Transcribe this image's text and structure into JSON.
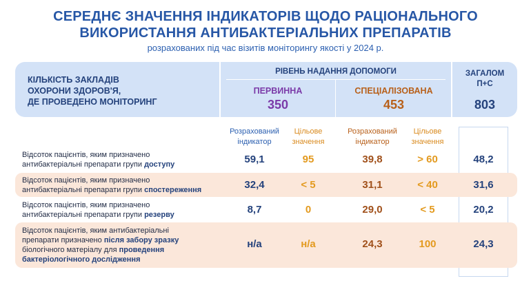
{
  "title_line1": "СЕРЕДНЄ ЗНАЧЕННЯ ІНДИКАТОРІВ ЩОДО РАЦІОНАЛЬНОГО",
  "title_line2": "ВИКОРИСТАННЯ АНТИБАКТЕРІАЛЬНИХ ПРЕПАРАТІВ",
  "subtitle": "розрахованих під час візитів моніторингу якості у 2024 р.",
  "header": {
    "left_line1": "КІЛЬКІСТЬ ЗАКЛАДІВ",
    "left_line2": "ОХОРОНИ ЗДОРОВ'Я,",
    "left_line3": "ДЕ ПРОВЕДЕНО МОНІТОРИНГ",
    "level": "РІВЕНЬ НАДАННЯ ДОПОМОГИ",
    "primary_label": "ПЕРВИННА",
    "primary_count": "350",
    "special_label": "СПЕЦІАЛІЗОВАНА",
    "special_count": "453",
    "total_line1": "ЗАГАЛОМ",
    "total_line2": "П+С",
    "total_count": "803"
  },
  "columns": {
    "calc_line1": "Розрахований",
    "calc_line2": "індикатор",
    "target_line1": "Цільове",
    "target_line2": "значення"
  },
  "rows": [
    {
      "text": [
        {
          "t": "Відсоток пацієнтів, яким призначено",
          "b": false,
          "br": true
        },
        {
          "t": "антибактеріальні препарати групи ",
          "b": false
        },
        {
          "t": "доступу",
          "b": true
        }
      ],
      "p_calc": "59,1",
      "p_target": "95",
      "s_calc": "39,8",
      "s_target": "> 60",
      "total": "48,2"
    },
    {
      "text": [
        {
          "t": "Відсоток пацієнтів, яким призначено",
          "b": false,
          "br": true
        },
        {
          "t": "антибактеріальні препарати групи ",
          "b": false
        },
        {
          "t": "спостереження",
          "b": true
        }
      ],
      "p_calc": "32,4",
      "p_target": "< 5",
      "s_calc": "31,1",
      "s_target": "< 40",
      "total": "31,6"
    },
    {
      "text": [
        {
          "t": "Відсоток пацієнтів, яким призначено",
          "b": false,
          "br": true
        },
        {
          "t": "антибактеріальні препарати групи ",
          "b": false
        },
        {
          "t": "резерву",
          "b": true
        }
      ],
      "p_calc": "8,7",
      "p_target": "0",
      "s_calc": "29,0",
      "s_target": "< 5",
      "total": "20,2"
    },
    {
      "text": [
        {
          "t": "Відсоток пацієнтів, яким антибактеріальні",
          "b": false,
          "br": true
        },
        {
          "t": "препарати призначено ",
          "b": false
        },
        {
          "t": "після забору зразку",
          "b": true,
          "br": true
        },
        {
          "t": "біологічного матеріалу для ",
          "b": false
        },
        {
          "t": "проведення",
          "b": true,
          "br": true
        },
        {
          "t": "бактеріологічного дослідження",
          "b": true
        }
      ],
      "p_calc": "н/а",
      "p_target": "н/а",
      "s_calc": "24,3",
      "s_target": "100",
      "total": "24,3"
    }
  ]
}
